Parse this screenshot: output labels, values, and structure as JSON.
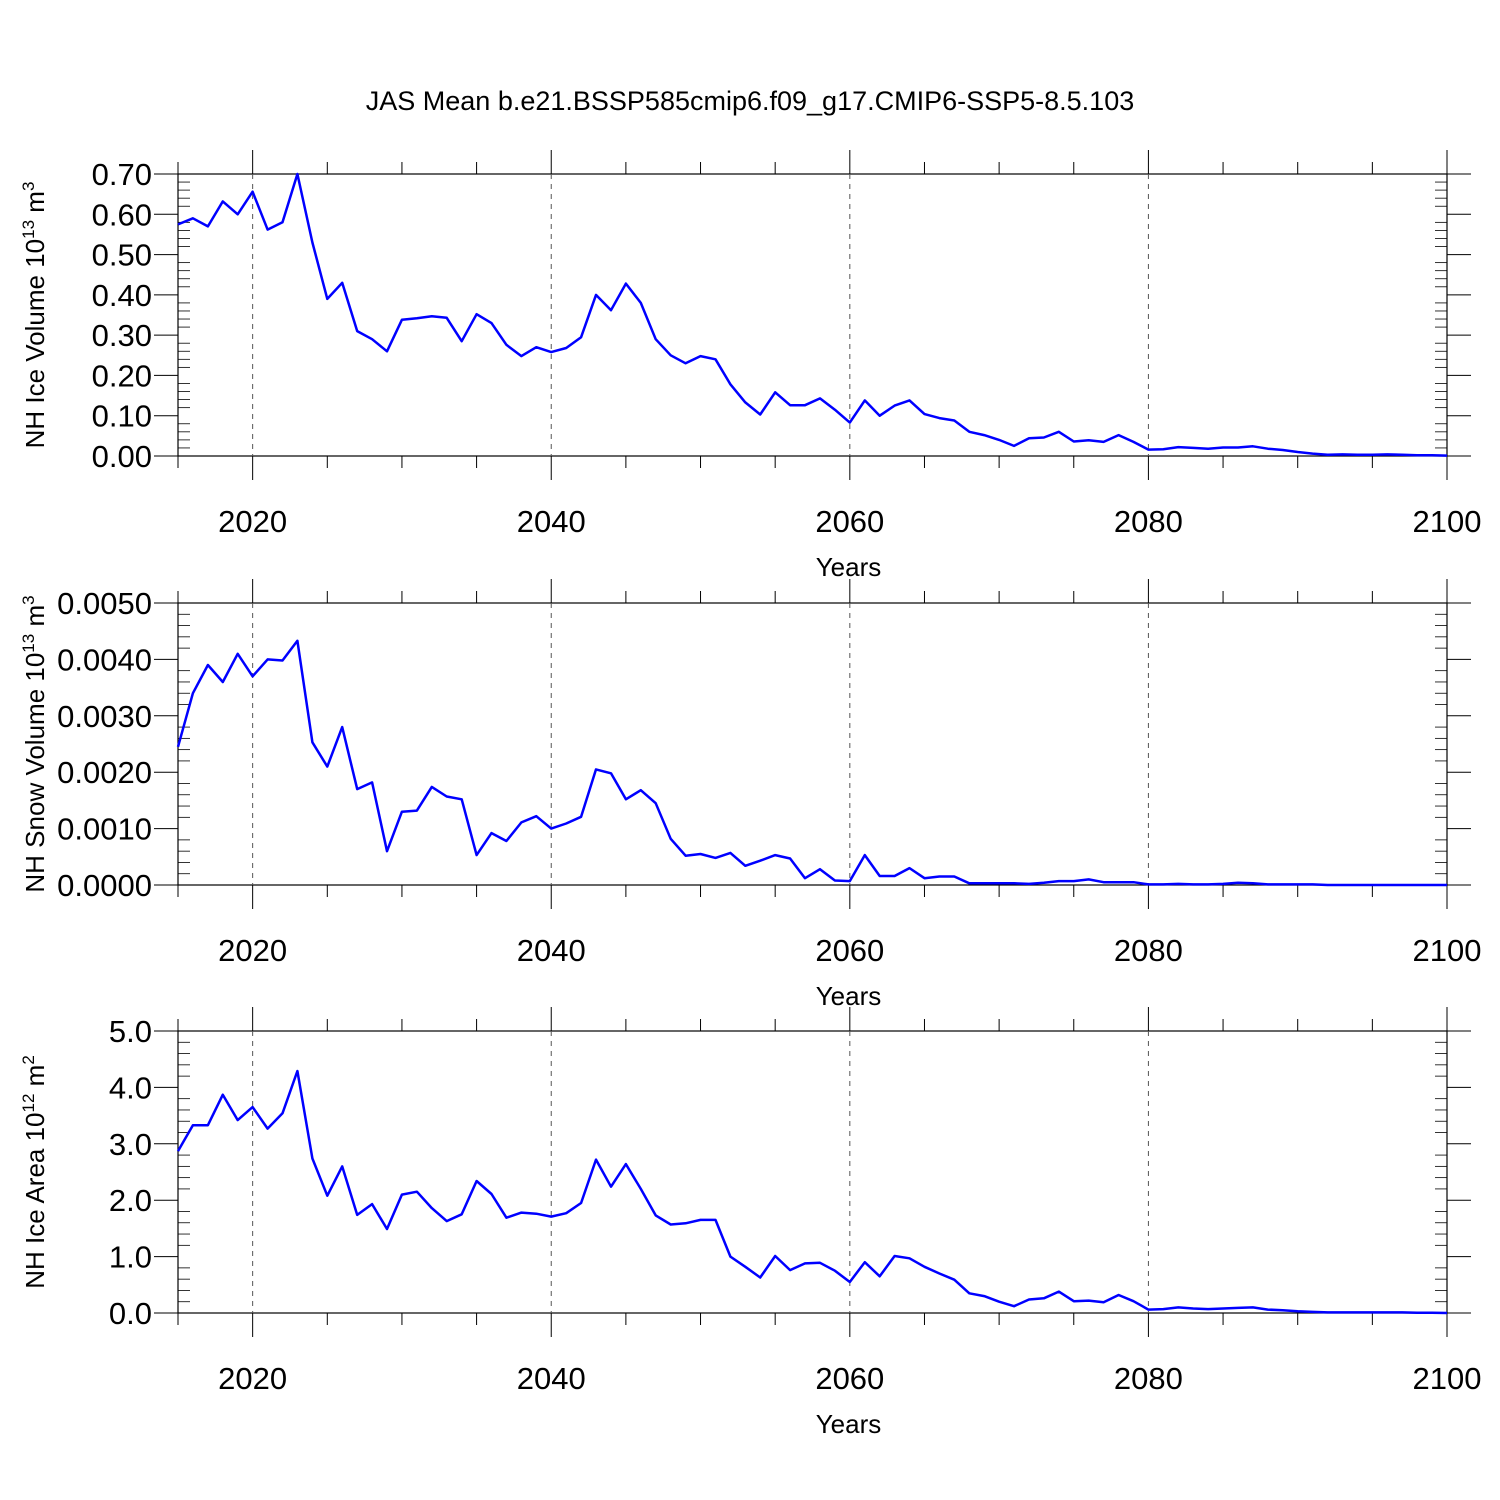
{
  "title": "JAS Mean b.e21.BSSP585cmip6.f09_g17.CMIP6-SSP5-8.5.103",
  "line_color": "#0000ff",
  "chart_data": [
    {
      "type": "line",
      "ylabel": "NH Ice Volume 10",
      "ylabel_exp": "13",
      "ylabel_unit": " m",
      "ylabel_unit_exp": "3",
      "xlabel": "Years",
      "xlim": [
        2015,
        2100
      ],
      "ylim": [
        0,
        0.7
      ],
      "yticks": [
        "0.00",
        "0.10",
        "0.20",
        "0.30",
        "0.40",
        "0.50",
        "0.60",
        "0.70"
      ],
      "xticks": [
        "2020",
        "2040",
        "2060",
        "2080",
        "2100"
      ],
      "x": [
        2015,
        2016,
        2017,
        2018,
        2019,
        2020,
        2021,
        2022,
        2023,
        2024,
        2025,
        2026,
        2027,
        2028,
        2029,
        2030,
        2031,
        2032,
        2033,
        2034,
        2035,
        2036,
        2037,
        2038,
        2039,
        2040,
        2041,
        2042,
        2043,
        2044,
        2045,
        2046,
        2047,
        2048,
        2049,
        2050,
        2051,
        2052,
        2053,
        2054,
        2055,
        2056,
        2057,
        2058,
        2059,
        2060,
        2061,
        2062,
        2063,
        2064,
        2065,
        2066,
        2067,
        2068,
        2069,
        2070,
        2071,
        2072,
        2073,
        2074,
        2075,
        2076,
        2077,
        2078,
        2079,
        2080,
        2081,
        2082,
        2083,
        2084,
        2085,
        2086,
        2087,
        2088,
        2089,
        2090,
        2091,
        2092,
        2093,
        2094,
        2095,
        2096,
        2097,
        2098,
        2099,
        2100
      ],
      "values": [
        0.575,
        0.59,
        0.57,
        0.632,
        0.6,
        0.656,
        0.562,
        0.58,
        0.7,
        0.53,
        0.39,
        0.43,
        0.31,
        0.29,
        0.26,
        0.338,
        0.342,
        0.347,
        0.343,
        0.285,
        0.352,
        0.33,
        0.276,
        0.248,
        0.27,
        0.258,
        0.268,
        0.295,
        0.4,
        0.362,
        0.428,
        0.38,
        0.29,
        0.25,
        0.23,
        0.248,
        0.24,
        0.178,
        0.133,
        0.103,
        0.158,
        0.126,
        0.126,
        0.143,
        0.115,
        0.083,
        0.138,
        0.1,
        0.125,
        0.138,
        0.104,
        0.094,
        0.088,
        0.06,
        0.052,
        0.04,
        0.025,
        0.044,
        0.046,
        0.06,
        0.036,
        0.039,
        0.035,
        0.052,
        0.035,
        0.016,
        0.017,
        0.022,
        0.02,
        0.018,
        0.021,
        0.021,
        0.024,
        0.018,
        0.015,
        0.01,
        0.006,
        0.003,
        0.004,
        0.003,
        0.003,
        0.004,
        0.003,
        0.002,
        0.002,
        0.001
      ]
    },
    {
      "type": "line",
      "ylabel": "NH Snow Volume 10",
      "ylabel_exp": "13",
      "ylabel_unit": " m",
      "ylabel_unit_exp": "3",
      "xlabel": "Years",
      "xlim": [
        2015,
        2100
      ],
      "ylim": [
        0,
        0.005
      ],
      "yticks": [
        "0.0000",
        "0.0010",
        "0.0020",
        "0.0030",
        "0.0040",
        "0.0050"
      ],
      "xticks": [
        "2020",
        "2040",
        "2060",
        "2080",
        "2100"
      ],
      "x": [
        2015,
        2016,
        2017,
        2018,
        2019,
        2020,
        2021,
        2022,
        2023,
        2024,
        2025,
        2026,
        2027,
        2028,
        2029,
        2030,
        2031,
        2032,
        2033,
        2034,
        2035,
        2036,
        2037,
        2038,
        2039,
        2040,
        2041,
        2042,
        2043,
        2044,
        2045,
        2046,
        2047,
        2048,
        2049,
        2050,
        2051,
        2052,
        2053,
        2054,
        2055,
        2056,
        2057,
        2058,
        2059,
        2060,
        2061,
        2062,
        2063,
        2064,
        2065,
        2066,
        2067,
        2068,
        2069,
        2070,
        2071,
        2072,
        2073,
        2074,
        2075,
        2076,
        2077,
        2078,
        2079,
        2080,
        2081,
        2082,
        2083,
        2084,
        2085,
        2086,
        2087,
        2088,
        2089,
        2090,
        2091,
        2092,
        2093,
        2094,
        2095,
        2096,
        2097,
        2098,
        2099,
        2100
      ],
      "values": [
        0.00245,
        0.0034,
        0.0039,
        0.0036,
        0.0041,
        0.0037,
        0.004,
        0.00398,
        0.00433,
        0.00253,
        0.0021,
        0.0028,
        0.0017,
        0.00182,
        0.0006,
        0.0013,
        0.00132,
        0.00174,
        0.00157,
        0.00152,
        0.00053,
        0.00092,
        0.00078,
        0.00111,
        0.00122,
        0.001,
        0.00109,
        0.00121,
        0.00205,
        0.00198,
        0.00152,
        0.00168,
        0.00145,
        0.00082,
        0.00052,
        0.00055,
        0.00048,
        0.00057,
        0.00034,
        0.00043,
        0.00053,
        0.00047,
        0.00012,
        0.00028,
        8e-05,
        7e-05,
        0.00053,
        0.00016,
        0.00016,
        0.0003,
        0.00012,
        0.00015,
        0.00015,
        3e-05,
        3e-05,
        3e-05,
        3e-05,
        2e-05,
        4e-05,
        7e-05,
        7e-05,
        0.0001,
        5e-05,
        5e-05,
        5e-05,
        1e-05,
        1e-05,
        2e-05,
        1e-05,
        1e-05,
        2e-05,
        4e-05,
        3e-05,
        1e-05,
        1e-05,
        1e-05,
        1e-05,
        0.0,
        0.0,
        0.0,
        0.0,
        0.0,
        0.0,
        0.0,
        0.0,
        0.0
      ]
    },
    {
      "type": "line",
      "ylabel": "NH Ice Area 10",
      "ylabel_exp": "12",
      "ylabel_unit": " m",
      "ylabel_unit_exp": "2",
      "xlabel": "Years",
      "xlim": [
        2015,
        2100
      ],
      "ylim": [
        0,
        5
      ],
      "yticks": [
        "0.0",
        "1.0",
        "2.0",
        "3.0",
        "4.0",
        "5.0"
      ],
      "xticks": [
        "2020",
        "2040",
        "2060",
        "2080",
        "2100"
      ],
      "x": [
        2015,
        2016,
        2017,
        2018,
        2019,
        2020,
        2021,
        2022,
        2023,
        2024,
        2025,
        2026,
        2027,
        2028,
        2029,
        2030,
        2031,
        2032,
        2033,
        2034,
        2035,
        2036,
        2037,
        2038,
        2039,
        2040,
        2041,
        2042,
        2043,
        2044,
        2045,
        2046,
        2047,
        2048,
        2049,
        2050,
        2051,
        2052,
        2053,
        2054,
        2055,
        2056,
        2057,
        2058,
        2059,
        2060,
        2061,
        2062,
        2063,
        2064,
        2065,
        2066,
        2067,
        2068,
        2069,
        2070,
        2071,
        2072,
        2073,
        2074,
        2075,
        2076,
        2077,
        2078,
        2079,
        2080,
        2081,
        2082,
        2083,
        2084,
        2085,
        2086,
        2087,
        2088,
        2089,
        2090,
        2091,
        2092,
        2093,
        2094,
        2095,
        2096,
        2097,
        2098,
        2099,
        2100
      ],
      "values": [
        2.87,
        3.33,
        3.33,
        3.87,
        3.42,
        3.65,
        3.27,
        3.54,
        4.29,
        2.74,
        2.08,
        2.6,
        1.74,
        1.93,
        1.49,
        2.1,
        2.15,
        1.86,
        1.63,
        1.75,
        2.34,
        2.11,
        1.69,
        1.78,
        1.76,
        1.71,
        1.77,
        1.95,
        2.72,
        2.24,
        2.64,
        2.2,
        1.73,
        1.57,
        1.59,
        1.65,
        1.65,
        1.0,
        0.82,
        0.63,
        1.01,
        0.76,
        0.88,
        0.89,
        0.75,
        0.55,
        0.9,
        0.65,
        1.01,
        0.97,
        0.82,
        0.7,
        0.59,
        0.35,
        0.3,
        0.2,
        0.12,
        0.24,
        0.26,
        0.38,
        0.21,
        0.22,
        0.19,
        0.32,
        0.21,
        0.06,
        0.07,
        0.1,
        0.08,
        0.07,
        0.08,
        0.09,
        0.1,
        0.06,
        0.05,
        0.03,
        0.02,
        0.01,
        0.01,
        0.01,
        0.01,
        0.01,
        0.01,
        0.005,
        0.005,
        0.0
      ]
    }
  ]
}
